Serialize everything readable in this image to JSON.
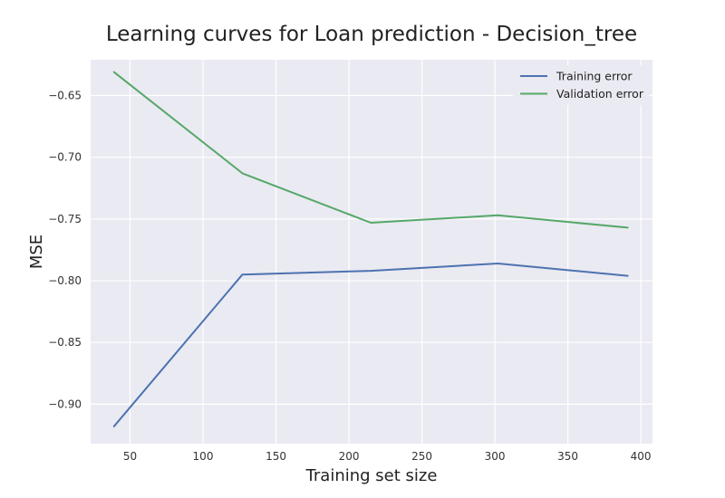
{
  "chart_data": {
    "type": "line",
    "title": "Learning curves for Loan prediction - Decision_tree",
    "xlabel": "Training set size",
    "ylabel": "MSE",
    "x": [
      39,
      127,
      215,
      302,
      391
    ],
    "xlim": [
      23,
      408
    ],
    "ylim": [
      -0.932,
      -0.621
    ],
    "xticks": [
      50,
      100,
      150,
      200,
      250,
      300,
      350,
      400
    ],
    "yticks": [
      -0.9,
      -0.85,
      -0.8,
      -0.75,
      -0.7,
      -0.65
    ],
    "xtick_labels": [
      "50",
      "100",
      "150",
      "200",
      "250",
      "300",
      "350",
      "400"
    ],
    "ytick_labels": [
      "−0.90",
      "−0.85",
      "−0.80",
      "−0.75",
      "−0.70",
      "−0.65"
    ],
    "grid": true,
    "legend_position": "top-right",
    "series": [
      {
        "name": "Training error",
        "color": "#4c72b0",
        "values": [
          -0.918,
          -0.795,
          -0.792,
          -0.786,
          -0.796
        ]
      },
      {
        "name": "Validation error",
        "color": "#55a868",
        "values": [
          -0.631,
          -0.713,
          -0.753,
          -0.747,
          -0.757
        ]
      }
    ]
  }
}
